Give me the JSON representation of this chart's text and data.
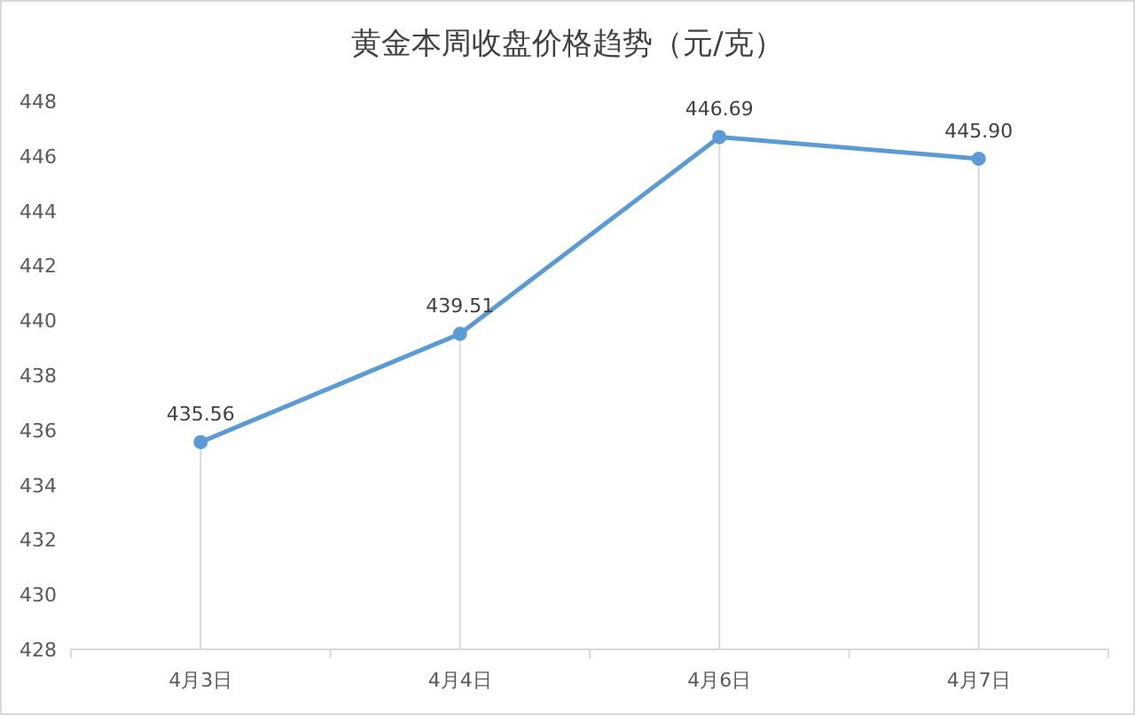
{
  "chart_data": {
    "type": "line",
    "title": "黄金本周收盘价格趋势（元/克）",
    "categories": [
      "4月3日",
      "4月4日",
      "4月6日",
      "4月7日"
    ],
    "series": [
      {
        "color": "#5b9bd5",
        "values": [
          435.56,
          439.51,
          446.69,
          445.9
        ]
      }
    ],
    "value_labels": [
      "435.56",
      "439.51",
      "446.69",
      "445.90"
    ],
    "ylim": [
      428,
      448
    ],
    "yticks": [
      428,
      430,
      432,
      434,
      436,
      438,
      440,
      442,
      444,
      446,
      448
    ],
    "marker": "circle",
    "grid": false,
    "ref_lines": [
      {
        "axis": "x",
        "value": "4月3日",
        "color": "#d9d9d9"
      },
      {
        "axis": "x",
        "value": "4月4日",
        "color": "#d9d9d9"
      },
      {
        "axis": "x",
        "value": "4月6日",
        "color": "#d9d9d9"
      },
      {
        "axis": "x",
        "value": "4月7日",
        "color": "#d9d9d9"
      }
    ]
  }
}
